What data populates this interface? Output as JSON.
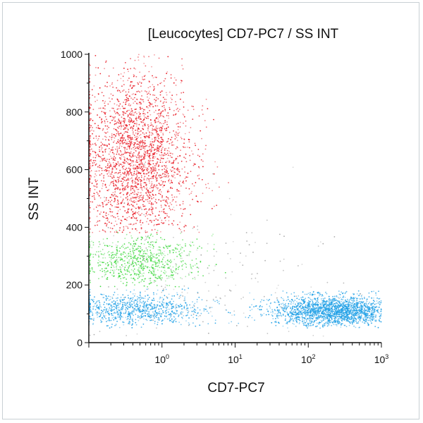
{
  "chart_data": {
    "type": "scatter",
    "title": "[Leucocytes] CD7-PC7 / SS INT",
    "xlabel": "CD7-PC7",
    "ylabel": "SS INT",
    "xscale": "log",
    "xlim": [
      0.1,
      1000
    ],
    "ylim": [
      0,
      1000
    ],
    "xticks": [
      {
        "value": 1,
        "base": "10",
        "exp": "0"
      },
      {
        "value": 10,
        "base": "10",
        "exp": "1"
      },
      {
        "value": 100,
        "base": "10",
        "exp": "2"
      },
      {
        "value": 1000,
        "base": "10",
        "exp": "3"
      }
    ],
    "yticks": [
      0,
      200,
      400,
      600,
      800,
      1000
    ],
    "grid": false,
    "populations": [
      {
        "color": "#e8141e",
        "x_center": 0.45,
        "x_log_spread": 0.38,
        "y_center": 640,
        "y_spread": 150,
        "y_range": [
          380,
          1000
        ],
        "count": 2600
      },
      {
        "color": "#3cd83c",
        "x_center": 0.5,
        "x_log_spread": 0.4,
        "y_center": 280,
        "y_spread": 45,
        "y_range": [
          190,
          390
        ],
        "count": 800
      },
      {
        "color": "#1e9fe6",
        "x_center": 0.45,
        "x_log_spread": 0.45,
        "y_center": 115,
        "y_spread": 28,
        "y_range": [
          50,
          190
        ],
        "count": 900
      },
      {
        "color": "#1e9fe6",
        "x_center": 220,
        "x_log_spread": 0.42,
        "y_center": 110,
        "y_spread": 25,
        "y_range": [
          50,
          180
        ],
        "count": 2200
      },
      {
        "color": "#a8a8a8",
        "x_center": 3,
        "x_log_spread": 1.0,
        "y_center": 200,
        "y_spread": 150,
        "y_range": [
          20,
          1000
        ],
        "count": 250
      }
    ]
  }
}
